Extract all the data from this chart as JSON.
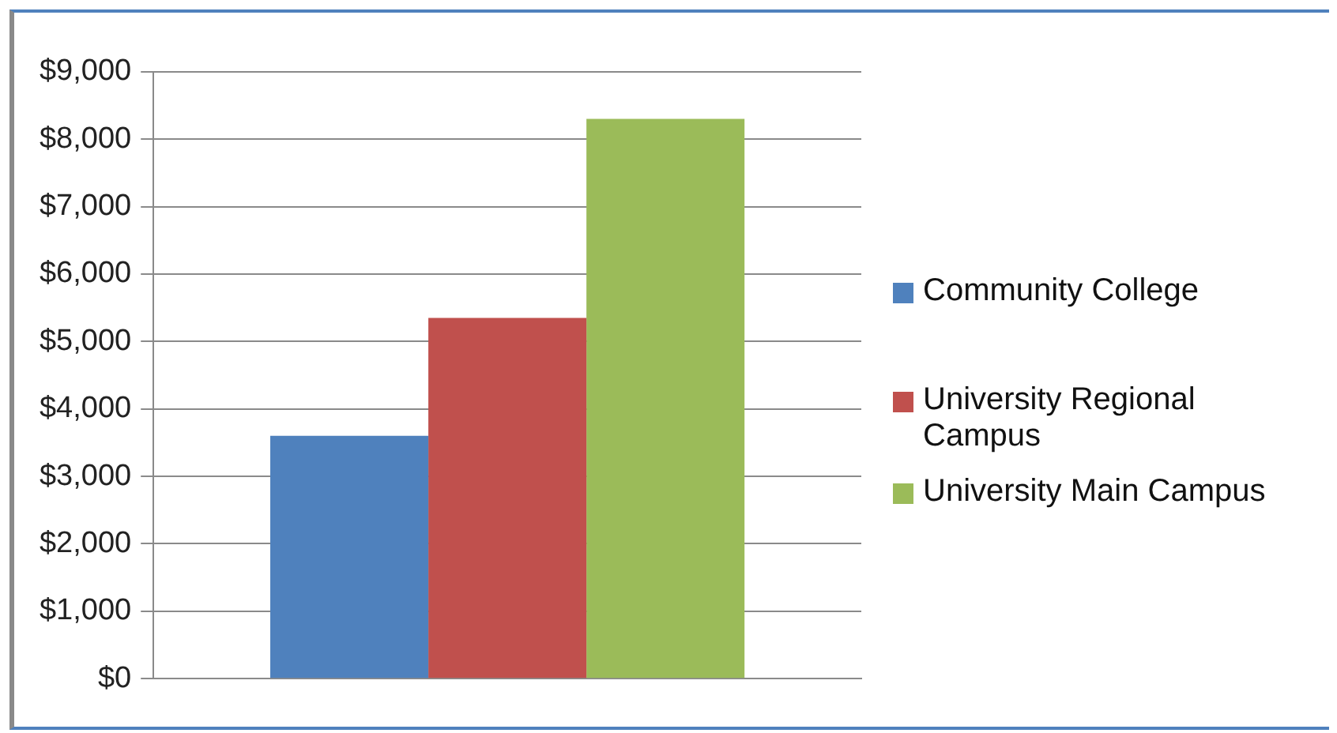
{
  "chart_data": {
    "type": "bar",
    "categories": [
      null
    ],
    "series": [
      {
        "name": "Community College",
        "color": "#4f81bd",
        "values": [
          3600
        ]
      },
      {
        "name": "University Regional Campus",
        "color": "#c0504d",
        "values": [
          5350
        ]
      },
      {
        "name": "University Main Campus",
        "color": "#9bbb59",
        "values": [
          8300
        ]
      }
    ],
    "ylim": [
      0,
      9000
    ],
    "yticks": [
      {
        "value": 0,
        "label": "$0"
      },
      {
        "value": 1000,
        "label": "$1,000"
      },
      {
        "value": 2000,
        "label": "$2,000"
      },
      {
        "value": 3000,
        "label": "$3,000"
      },
      {
        "value": 4000,
        "label": "$4,000"
      },
      {
        "value": 5000,
        "label": "$5,000"
      },
      {
        "value": 6000,
        "label": "$6,000"
      },
      {
        "value": 7000,
        "label": "$7,000"
      },
      {
        "value": 8000,
        "label": "$8,000"
      },
      {
        "value": 9000,
        "label": "$9,000"
      }
    ],
    "grid": "y",
    "legend": "right"
  }
}
